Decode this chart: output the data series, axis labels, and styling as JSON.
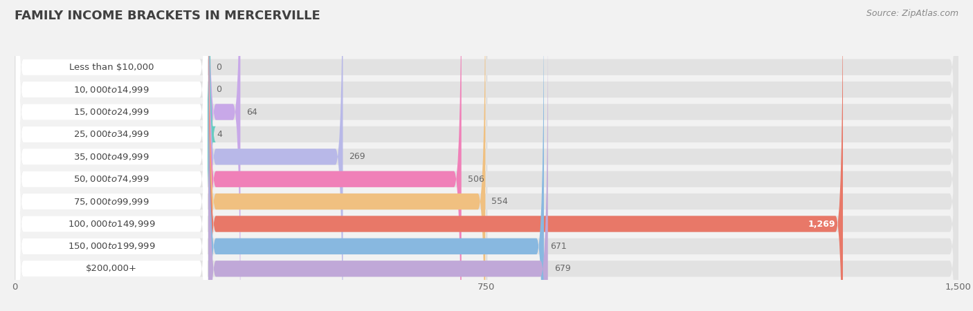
{
  "title": "FAMILY INCOME BRACKETS IN MERCERVILLE",
  "source": "Source: ZipAtlas.com",
  "categories": [
    "Less than $10,000",
    "$10,000 to $14,999",
    "$15,000 to $24,999",
    "$25,000 to $34,999",
    "$35,000 to $49,999",
    "$50,000 to $74,999",
    "$75,000 to $99,999",
    "$100,000 to $149,999",
    "$150,000 to $199,999",
    "$200,000+"
  ],
  "values": [
    0,
    0,
    64,
    4,
    269,
    506,
    554,
    1269,
    671,
    679
  ],
  "bar_colors": [
    "#f0a0a0",
    "#a8c8f0",
    "#c8a8e8",
    "#68ccc0",
    "#b8b8e8",
    "#f080b8",
    "#f0c080",
    "#e87868",
    "#88b8e0",
    "#c0a8d8"
  ],
  "background_color": "#f2f2f2",
  "bar_bg_color": "#e2e2e2",
  "label_bg_color": "#ffffff",
  "xlim": [
    0,
    1500
  ],
  "xticks": [
    0,
    750,
    1500
  ],
  "title_fontsize": 13,
  "label_fontsize": 9.5,
  "value_fontsize": 9,
  "source_fontsize": 9,
  "largest_value": 1269,
  "value_label_inside": 1269
}
